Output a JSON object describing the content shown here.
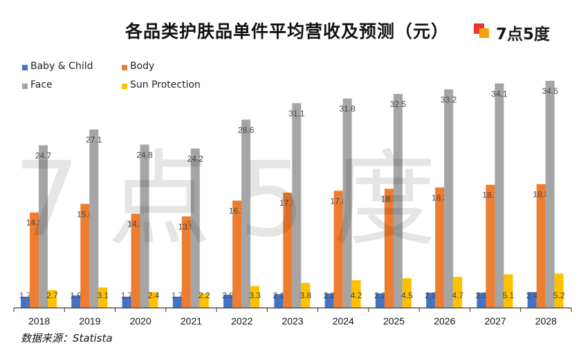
{
  "title": "各品类护肤品单件平均营收及预测（元）",
  "logo": {
    "text": "7点5度"
  },
  "watermark": "7点5度",
  "source": "数据来源：Statista",
  "colors": {
    "Baby & Child": "#4472c4",
    "Body": "#ed7d31",
    "Face": "#a5a5a5",
    "Sun Protection": "#ffc000",
    "logo_red": "#e8382b",
    "logo_orange": "#f5a20f"
  },
  "chart_data": {
    "type": "bar",
    "categories": [
      "2018",
      "2019",
      "2020",
      "2021",
      "2022",
      "2023",
      "2024",
      "2025",
      "2026",
      "2027",
      "2028"
    ],
    "series": [
      {
        "name": "Baby & Child",
        "values": [
          1.7,
          1.9,
          1.7,
          1.7,
          2.0,
          2.1,
          2.2,
          2.2,
          2.3,
          2.3,
          2.4
        ]
      },
      {
        "name": "Body",
        "values": [
          14.5,
          15.8,
          14.3,
          13.9,
          16.3,
          17.5,
          17.8,
          18.1,
          18.3,
          18.7,
          18.8
        ]
      },
      {
        "name": "Face",
        "values": [
          24.7,
          27.1,
          24.8,
          24.2,
          28.6,
          31.1,
          31.8,
          32.5,
          33.2,
          34.1,
          34.5
        ]
      },
      {
        "name": "Sun Protection",
        "values": [
          2.7,
          3.1,
          2.4,
          2.2,
          3.3,
          3.8,
          4.2,
          4.5,
          4.7,
          5.1,
          5.2
        ]
      }
    ],
    "ylim": [
      0,
      35
    ],
    "legend": "top-left",
    "grid": false,
    "data_labels": true
  }
}
